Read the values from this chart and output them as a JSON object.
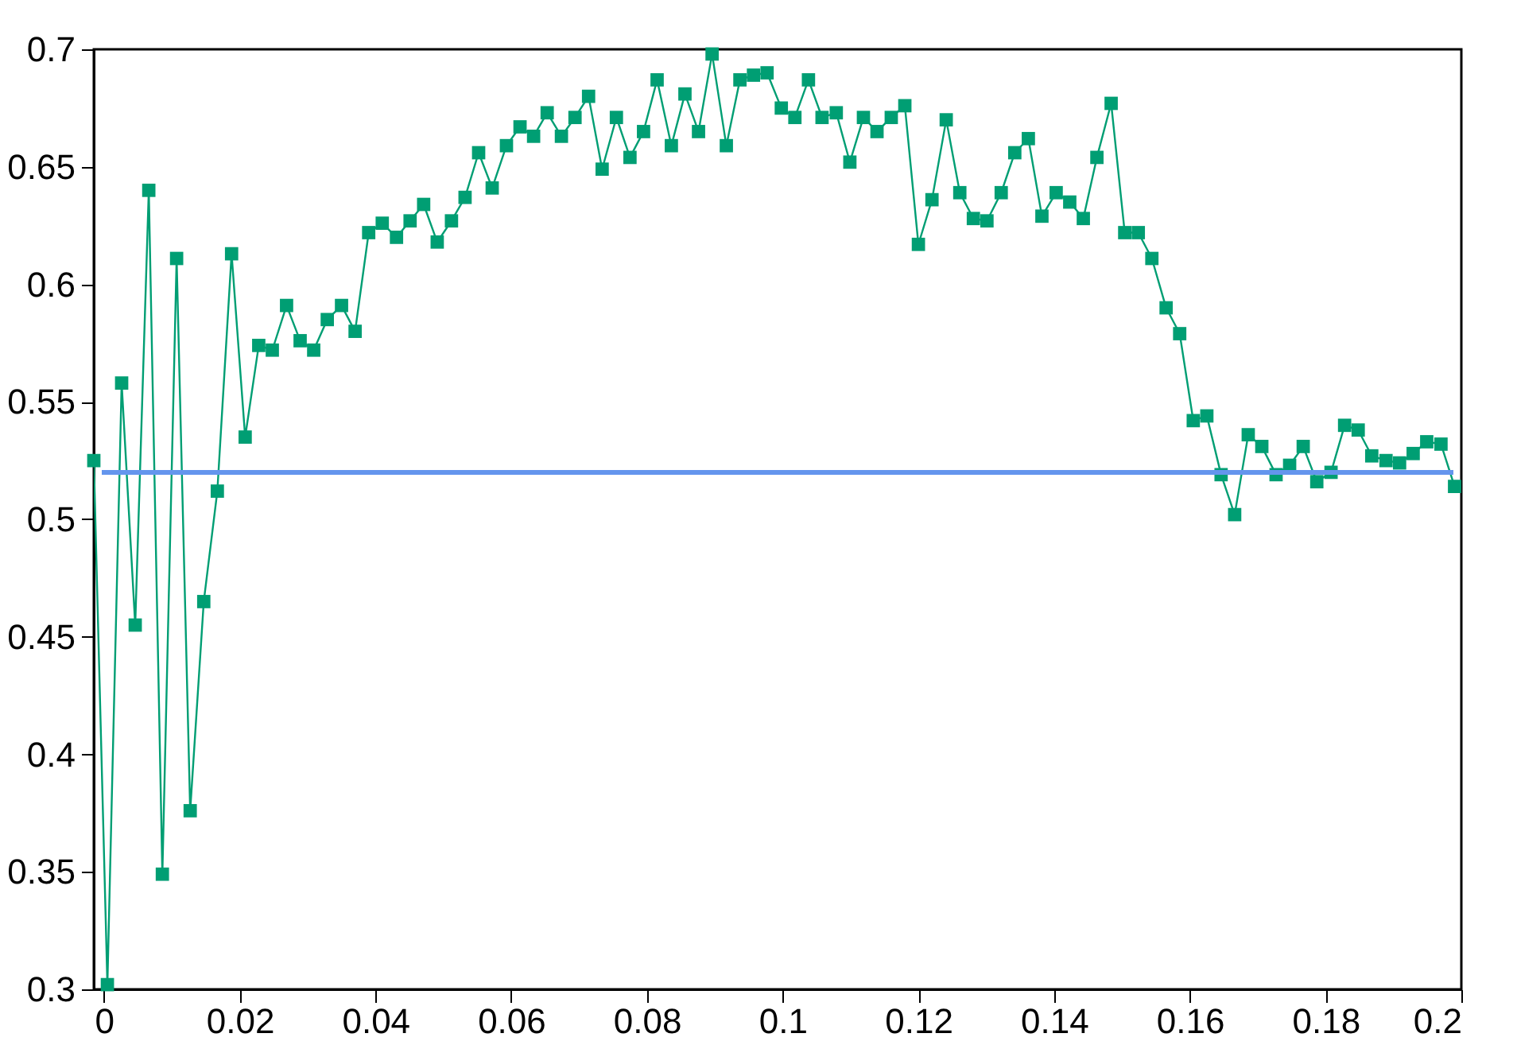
{
  "chart_data": {
    "type": "line",
    "marker": "square",
    "line_style": "solid",
    "grid": false,
    "xlim": [
      -0.0015,
      0.2
    ],
    "xticks": [
      0,
      0.02,
      0.04,
      0.06,
      0.08,
      0.1,
      0.12,
      0.14,
      0.16,
      0.18,
      0.2
    ],
    "ylim": [
      0.3,
      0.7
    ],
    "yticks": [
      0.3,
      0.35,
      0.4,
      0.45,
      0.5,
      0.55,
      0.6,
      0.65,
      0.7
    ],
    "x": [
      -0.0015,
      0.0005,
      0.0026,
      0.0046,
      0.0066,
      0.0086,
      0.0107,
      0.0127,
      0.0147,
      0.0167,
      0.0188,
      0.0208,
      0.0228,
      0.0248,
      0.0269,
      0.0289,
      0.0309,
      0.0329,
      0.035,
      0.037,
      0.039,
      0.041,
      0.0431,
      0.0451,
      0.0471,
      0.0491,
      0.0512,
      0.0532,
      0.0552,
      0.0572,
      0.0593,
      0.0613,
      0.0633,
      0.0653,
      0.0674,
      0.0694,
      0.0714,
      0.0734,
      0.0755,
      0.0775,
      0.0795,
      0.0815,
      0.0836,
      0.0856,
      0.0876,
      0.0896,
      0.0917,
      0.0937,
      0.0957,
      0.0977,
      0.0998,
      0.1018,
      0.1038,
      0.1058,
      0.1079,
      0.1099,
      0.1119,
      0.1139,
      0.116,
      0.118,
      0.12,
      0.122,
      0.1241,
      0.1261,
      0.1281,
      0.1301,
      0.1322,
      0.1342,
      0.1362,
      0.1382,
      0.1403,
      0.1423,
      0.1443,
      0.1463,
      0.1484,
      0.1504,
      0.1524,
      0.1544,
      0.1565,
      0.1585,
      0.1605,
      0.1625,
      0.1646,
      0.1666,
      0.1686,
      0.1706,
      0.1727,
      0.1747,
      0.1767,
      0.1787,
      0.1808,
      0.1828,
      0.1848,
      0.1868,
      0.1889,
      0.1909,
      0.1929,
      0.1949,
      0.197,
      0.199
    ],
    "series": [
      {
        "color": "#009e73",
        "values": [
          0.525,
          0.302,
          0.558,
          0.455,
          0.64,
          0.349,
          0.611,
          0.376,
          0.465,
          0.512,
          0.613,
          0.535,
          0.574,
          0.572,
          0.591,
          0.576,
          0.572,
          0.585,
          0.591,
          0.58,
          0.622,
          0.626,
          0.62,
          0.627,
          0.634,
          0.618,
          0.627,
          0.637,
          0.656,
          0.641,
          0.659,
          0.667,
          0.663,
          0.673,
          0.663,
          0.671,
          0.68,
          0.649,
          0.671,
          0.654,
          0.665,
          0.687,
          0.659,
          0.681,
          0.665,
          0.698,
          0.659,
          0.687,
          0.689,
          0.69,
          0.675,
          0.671,
          0.687,
          0.671,
          0.673,
          0.652,
          0.671,
          0.665,
          0.671,
          0.676,
          0.617,
          0.636,
          0.67,
          0.639,
          0.628,
          0.627,
          0.639,
          0.656,
          0.662,
          0.629,
          0.639,
          0.635,
          0.628,
          0.654,
          0.677,
          0.622,
          0.622,
          0.611,
          0.59,
          0.579,
          0.542,
          0.544,
          0.519,
          0.502,
          0.536,
          0.531,
          0.519,
          0.523,
          0.531,
          0.516,
          0.52,
          0.54,
          0.538,
          0.527,
          0.525,
          0.524,
          0.528,
          0.533,
          0.532,
          0.514
        ]
      }
    ],
    "ref_lines": [
      {
        "axis": "y",
        "value": 0.52,
        "color": "#6495ed",
        "line_style": "solid"
      }
    ]
  }
}
